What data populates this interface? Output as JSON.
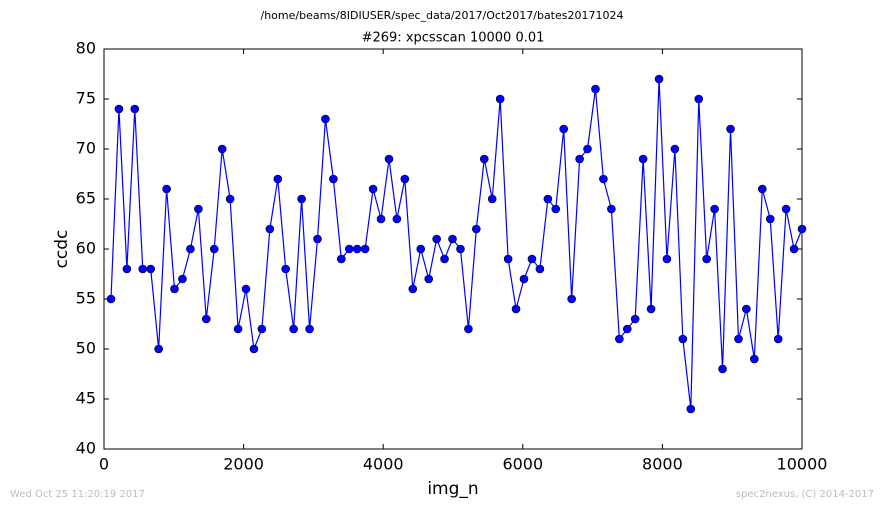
{
  "chart_data": {
    "type": "line",
    "suptitle": "/home/beams/8IDIUSER/spec_data/2017/Oct2017/bates20171024",
    "title": "#269: xpcsscan 10000 0.01",
    "xlabel": "img_n",
    "ylabel": "ccdc",
    "footer_left": "Wed Oct 25 11:20:19 2017",
    "footer_right": "spec2nexus, (C) 2014-2017",
    "x": [
      100,
      214,
      328,
      441,
      555,
      669,
      783,
      897,
      1010,
      1124,
      1238,
      1352,
      1465,
      1579,
      1693,
      1807,
      1921,
      2034,
      2148,
      2262,
      2376,
      2490,
      2603,
      2717,
      2831,
      2945,
      3059,
      3172,
      3286,
      3400,
      3514,
      3627,
      3741,
      3855,
      3969,
      4083,
      4196,
      4310,
      4424,
      4538,
      4652,
      4766,
      4879,
      4993,
      5107,
      5221,
      5334,
      5448,
      5562,
      5676,
      5790,
      5903,
      6017,
      6131,
      6245,
      6359,
      6472,
      6586,
      6700,
      6814,
      6927,
      7041,
      7155,
      7269,
      7383,
      7497,
      7610,
      7724,
      7838,
      7952,
      8065,
      8179,
      8293,
      8407,
      8521,
      8634,
      8748,
      8862,
      8976,
      9090,
      9203,
      9317,
      9431,
      9545,
      9659,
      9772,
      9886,
      10000
    ],
    "series": [
      {
        "color": "#0000ff",
        "values": [
          55,
          74,
          58,
          74,
          58,
          58,
          50,
          66,
          56,
          57,
          60,
          64,
          53,
          60,
          70,
          65,
          52,
          56,
          50,
          52,
          62,
          67,
          58,
          52,
          65,
          52,
          61,
          73,
          67,
          59,
          60,
          60,
          60,
          66,
          63,
          69,
          63,
          67,
          56,
          60,
          57,
          61,
          59,
          61,
          60,
          52,
          62,
          69,
          65,
          75,
          59,
          54,
          57,
          59,
          58,
          65,
          64,
          72,
          55,
          69,
          70,
          76,
          67,
          64,
          51,
          52,
          53,
          69,
          54,
          77,
          59,
          70,
          51,
          44,
          75,
          59,
          64,
          48,
          72,
          51,
          54,
          49,
          66,
          63,
          51,
          64,
          60,
          62
        ]
      }
    ],
    "xlim": [
      0,
      10000
    ],
    "xticks": [
      0,
      2000,
      4000,
      6000,
      8000,
      10000
    ],
    "ylim": [
      40,
      80
    ],
    "yticks": [
      40,
      45,
      50,
      55,
      60,
      65,
      70,
      75,
      80
    ]
  }
}
